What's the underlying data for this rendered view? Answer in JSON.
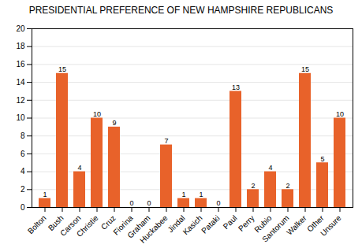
{
  "chart_data": {
    "type": "bar",
    "title": "PRESIDENTIAL PREFERENCE OF NEW HAMPSHIRE REPUBLICANS",
    "categories": [
      "Bolton",
      "Bush",
      "Carson",
      "Christie",
      "Cruz",
      "Fiorina",
      "Graham",
      "Huckabee",
      "Jindal",
      "Kasich",
      "Pataki",
      "Paul",
      "Perry",
      "Rubio",
      "Santorum",
      "Walker",
      "Other",
      "Unsure"
    ],
    "values": [
      1,
      15,
      4,
      10,
      9,
      0,
      0,
      7,
      1,
      1,
      0,
      13,
      2,
      4,
      2,
      15,
      5,
      10
    ],
    "color": "#E8622A",
    "ylim": [
      0,
      20
    ],
    "yticks": [
      0,
      2,
      4,
      6,
      8,
      10,
      12,
      14,
      16,
      18,
      20
    ],
    "grid": true,
    "data_labels": true
  }
}
